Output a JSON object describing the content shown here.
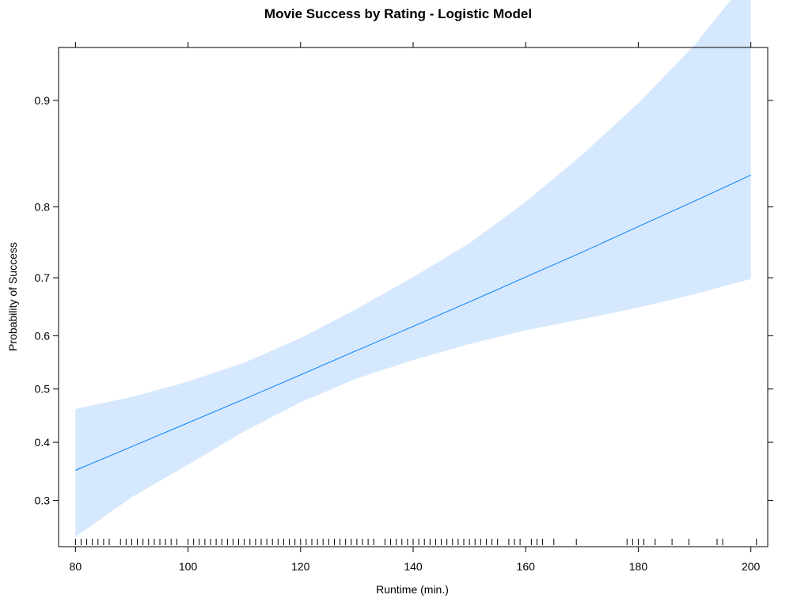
{
  "chart_data": {
    "type": "line",
    "title": "Movie Success by Rating - Logistic Model",
    "xlabel": "Runtime (min.)",
    "ylabel": "Probability of Success",
    "xlim": [
      77,
      203
    ],
    "ylim_logit": [
      -1.2,
      2.6
    ],
    "y_scale": "logit",
    "x_ticks": [
      80,
      100,
      120,
      140,
      160,
      180,
      200
    ],
    "y_ticks": [
      0.3,
      0.4,
      0.5,
      0.6,
      0.7,
      0.8,
      0.9
    ],
    "y_tick_labels": [
      "0.3",
      "0.4",
      "0.5",
      "0.6",
      "0.7",
      "0.8",
      "0.9"
    ],
    "x_tick_labels": [
      "80",
      "100",
      "120",
      "140",
      "160",
      "180",
      "200"
    ],
    "grid": false,
    "series": [
      {
        "x": [
          80,
          90,
          100,
          110,
          120,
          130,
          140,
          150,
          160,
          170,
          180,
          190,
          200
        ],
        "y": [
          0.35,
          0.392,
          0.436,
          0.481,
          0.527,
          0.573,
          0.617,
          0.66,
          0.701,
          0.739,
          0.775,
          0.807,
          0.836
        ],
        "lower": [
          0.245,
          0.305,
          0.36,
          0.42,
          0.475,
          0.52,
          0.555,
          0.585,
          0.61,
          0.63,
          0.65,
          0.673,
          0.698
        ],
        "upper": [
          0.462,
          0.485,
          0.514,
          0.55,
          0.596,
          0.648,
          0.701,
          0.752,
          0.806,
          0.856,
          0.898,
          0.932,
          0.959
        ]
      }
    ],
    "rug_x": [
      80,
      81,
      82,
      83,
      84,
      85,
      86,
      88,
      89,
      90,
      91,
      92,
      93,
      94,
      95,
      96,
      97,
      98,
      100,
      101,
      102,
      103,
      104,
      105,
      106,
      107,
      108,
      109,
      110,
      111,
      112,
      113,
      114,
      115,
      116,
      117,
      118,
      119,
      120,
      121,
      122,
      123,
      124,
      125,
      126,
      127,
      128,
      129,
      130,
      131,
      132,
      133,
      135,
      136,
      137,
      138,
      139,
      140,
      141,
      142,
      143,
      144,
      145,
      146,
      147,
      148,
      149,
      150,
      151,
      152,
      153,
      154,
      155,
      157,
      158,
      159,
      161,
      162,
      163,
      165,
      169,
      178,
      179,
      180,
      181,
      183,
      186,
      189,
      194,
      195,
      201
    ],
    "colors": {
      "line": "#0080ff",
      "band": "#d6e8fd",
      "axes": "#000000"
    }
  }
}
